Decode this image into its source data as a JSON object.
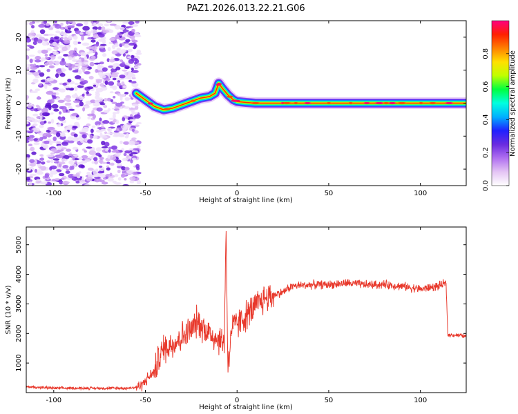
{
  "title": "PAZ1.2026.013.22.21.G06",
  "chart_data": [
    {
      "type": "heatmap",
      "name": "spectrogram",
      "xlabel": "Height of straight line (km)",
      "ylabel": "Frequency (Hz)",
      "xlim": [
        -115,
        125
      ],
      "ylim": [
        -25,
        25
      ],
      "xticks": [
        "-100",
        "-50",
        "0",
        "50",
        "100"
      ],
      "yticks": [
        "20",
        "10",
        "0",
        "-10",
        "-20"
      ],
      "noise_region": [
        -115,
        -55
      ],
      "ridge": {
        "description": "frequency of peak spectral amplitude vs height",
        "x": [
          -55,
          -50,
          -45,
          -40,
          -35,
          -30,
          -25,
          -20,
          -15,
          -12,
          -10,
          -8,
          -5,
          -2,
          0,
          5,
          10,
          20,
          30,
          50,
          80,
          100,
          125
        ],
        "y": [
          3,
          1,
          -1,
          -2,
          -1.5,
          -0.5,
          0.5,
          1.5,
          2,
          3,
          6,
          4.5,
          2.5,
          1,
          0.5,
          0.2,
          0,
          0,
          0,
          0,
          0,
          0,
          0
        ]
      },
      "colorbar": {
        "label": "Normalized spectral amplitude",
        "range": [
          0,
          1
        ],
        "ticks": [
          "0.0",
          "0.2",
          "0.4",
          "0.6",
          "0.8"
        ],
        "colors": [
          "#ffffff",
          "#e4c4f4",
          "#b070f0",
          "#6a2be0",
          "#2020ff",
          "#00b0ff",
          "#00ffe0",
          "#00ff40",
          "#c0ff00",
          "#ffe000",
          "#ff8000",
          "#ff2000",
          "#ff0080"
        ]
      }
    },
    {
      "type": "line",
      "name": "snr",
      "xlabel": "Height of straight line (km)",
      "ylabel": "SNR (10 * v/v)",
      "xlim": [
        -115,
        125
      ],
      "ylim": [
        0,
        5600
      ],
      "xticks": [
        "-100",
        "-50",
        "0",
        "50",
        "100"
      ],
      "yticks": [
        "1000",
        "2000",
        "3000",
        "4000",
        "5000"
      ],
      "color": "#e8392c",
      "series": [
        {
          "name": "SNR",
          "x": [
            -115,
            -100,
            -80,
            -60,
            -55,
            -52,
            -50,
            -47,
            -45,
            -43,
            -40,
            -37,
            -35,
            -30,
            -25,
            -22,
            -20,
            -15,
            -10,
            -7,
            -6,
            -5,
            -3,
            0,
            5,
            10,
            15,
            20,
            25,
            30,
            40,
            50,
            60,
            70,
            80,
            90,
            100,
            105,
            110,
            114,
            115,
            120,
            125
          ],
          "y": [
            200,
            150,
            150,
            150,
            180,
            250,
            400,
            600,
            700,
            1100,
            1500,
            1600,
            1650,
            1900,
            2100,
            2400,
            2300,
            2000,
            1800,
            1700,
            5600,
            800,
            2200,
            2300,
            2600,
            2900,
            3200,
            3300,
            3400,
            3600,
            3650,
            3650,
            3700,
            3650,
            3650,
            3600,
            3500,
            3550,
            3600,
            3700,
            1950,
            1950,
            1900
          ]
        }
      ]
    }
  ]
}
